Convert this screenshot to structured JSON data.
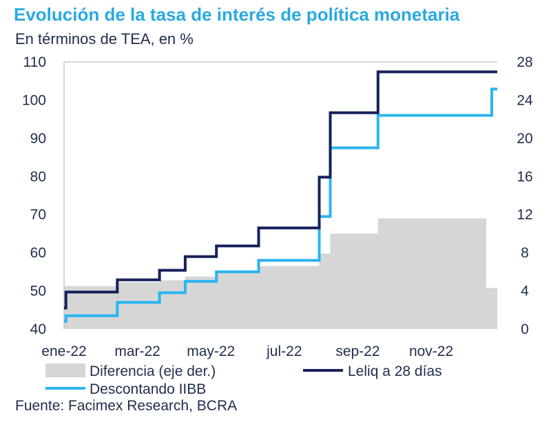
{
  "title": "Evolución de la tasa de interés de política monetaria",
  "subtitle": "En términos de TEA, en %",
  "source": "Fuente: Facimex Research, BCRA",
  "colors": {
    "title": "#29a9e1",
    "leliq": "#16215b",
    "iibb": "#29b5f0",
    "diferencia": "#d6d6d6",
    "text": "#1f2d4d"
  },
  "chart_data": {
    "type": "line",
    "left_axis": {
      "ylim": [
        40,
        110
      ],
      "ticks": [
        40,
        50,
        60,
        70,
        80,
        90,
        100,
        110
      ]
    },
    "right_axis": {
      "ylim": [
        0,
        28
      ],
      "ticks": [
        0,
        4,
        8,
        12,
        16,
        20,
        24,
        28
      ]
    },
    "x_axis": {
      "range_months": [
        0,
        11.8
      ],
      "ticks": [
        {
          "label": "ene-22",
          "month": 0
        },
        {
          "label": "mar-22",
          "month": 2
        },
        {
          "label": "may-22",
          "month": 4
        },
        {
          "label": "jul-22",
          "month": 6
        },
        {
          "label": "sep-22",
          "month": 8
        },
        {
          "label": "nov-22",
          "month": 10
        }
      ]
    },
    "legend": [
      {
        "name": "Diferencia (eje der.)",
        "key": "diferencia"
      },
      {
        "name": "Leliq a 28 días",
        "key": "leliq"
      },
      {
        "name": "Descontando IIBB",
        "key": "iibb"
      }
    ],
    "series": [
      {
        "name": "Leliq a 28 días",
        "axis": "left",
        "kind": "step",
        "x": [
          0,
          0.05,
          1.45,
          2.6,
          3.3,
          4.15,
          5.3,
          6.95,
          7.25,
          8.55,
          11.8
        ],
        "y": [
          45.5,
          49.7,
          52.9,
          55.4,
          59,
          61.8,
          66.5,
          79.8,
          96.7,
          107.4,
          107.4
        ]
      },
      {
        "name": "Descontando IIBB",
        "axis": "left",
        "kind": "step",
        "x": [
          0,
          0.05,
          1.45,
          2.6,
          3.3,
          4.15,
          5.3,
          6.95,
          7.25,
          8.55,
          11.65,
          11.8
        ],
        "y": [
          42,
          43.5,
          47,
          49.5,
          52.5,
          55,
          58,
          69.5,
          87.5,
          96,
          102.9,
          102.9
        ]
      },
      {
        "name": "Diferencia (eje der.)",
        "axis": "right",
        "kind": "step-area",
        "x": [
          0,
          1.45,
          2.6,
          3.3,
          4.15,
          5.3,
          6.95,
          7.25,
          8.55,
          11.5,
          11.8
        ],
        "y": [
          4.5,
          4.9,
          5.1,
          5.5,
          6.1,
          6.6,
          7.9,
          10,
          11.6,
          4.3,
          4.3
        ]
      }
    ]
  }
}
